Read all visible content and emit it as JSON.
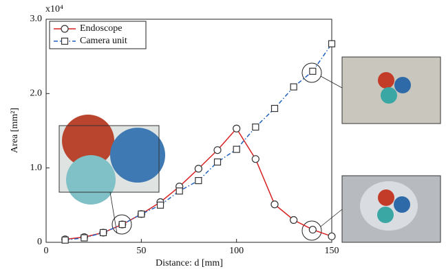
{
  "chart_data": {
    "type": "line",
    "y_multiplier": "x10⁴",
    "xlabel": "Distance: d [mm]",
    "ylabel": "Area [mm²]",
    "x": [
      10,
      20,
      30,
      40,
      50,
      60,
      70,
      80,
      90,
      100,
      110,
      120,
      130,
      140,
      150
    ],
    "series": [
      {
        "name": "Endoscope",
        "color": "#d62020",
        "marker": "circle",
        "dash": "solid",
        "values": [
          0.04,
          0.07,
          0.13,
          0.24,
          0.38,
          0.54,
          0.75,
          0.99,
          1.24,
          1.53,
          1.12,
          0.51,
          0.3,
          0.17,
          0.08
        ]
      },
      {
        "name": "Camera unit",
        "color": "#1f5fbf",
        "marker": "square",
        "dash": "dashdot",
        "values": [
          0.03,
          0.06,
          0.13,
          0.24,
          0.38,
          0.5,
          0.69,
          0.83,
          1.08,
          1.25,
          1.55,
          1.8,
          2.09,
          2.3,
          2.67
        ]
      }
    ],
    "xlim": [
      0,
      150
    ],
    "xticks": [
      0,
      50,
      100,
      150
    ],
    "ylim": [
      0,
      3
    ],
    "yticks": [
      0,
      {
        "value": 1,
        "label": "1.0"
      },
      {
        "value": 2,
        "label": "2.0"
      },
      {
        "value": 3,
        "label": "3.0"
      }
    ],
    "legend": "top-left",
    "grid": false
  }
}
